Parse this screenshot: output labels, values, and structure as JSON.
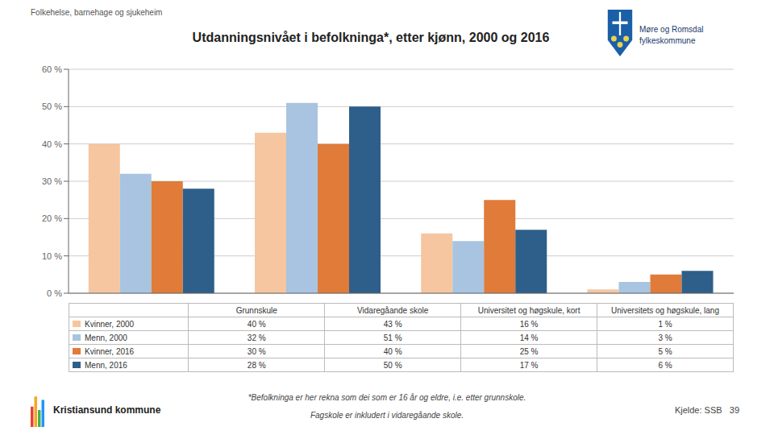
{
  "chart_data": {
    "type": "bar",
    "title": "Utdanningsnivået i befolkninga*, etter kjønn, 2000 og 2016",
    "categories": [
      "Grunnskule",
      "Vidaregåande skole",
      "Universitet og høgskule, kort",
      "Universitets og høgskule, lang"
    ],
    "series": [
      {
        "name": "Kvinner, 2000",
        "color": "#f5c6a0",
        "values": [
          40,
          43,
          16,
          1
        ],
        "value_labels": [
          "40 %",
          "43 %",
          "16 %",
          "1 %"
        ]
      },
      {
        "name": "Menn, 2000",
        "color": "#a8c4e0",
        "values": [
          32,
          51,
          14,
          3
        ],
        "value_labels": [
          "32 %",
          "51 %",
          "14 %",
          "3 %"
        ]
      },
      {
        "name": "Kvinner, 2016",
        "color": "#e07b39",
        "values": [
          30,
          40,
          25,
          5
        ],
        "value_labels": [
          "30 %",
          "40 %",
          "25 %",
          "5 %"
        ]
      },
      {
        "name": "Menn, 2016",
        "color": "#2e5f8a",
        "values": [
          28,
          50,
          17,
          6
        ],
        "value_labels": [
          "28 %",
          "50 %",
          "17 %",
          "6 %"
        ]
      }
    ],
    "ylim": [
      0,
      60
    ],
    "yticks": [
      {
        "value": 0,
        "label": "0 %"
      },
      {
        "value": 10,
        "label": "10 %"
      },
      {
        "value": 20,
        "label": "20 %"
      },
      {
        "value": 30,
        "label": "30 %"
      },
      {
        "value": 40,
        "label": "40 %"
      },
      {
        "value": 50,
        "label": "50 %"
      },
      {
        "value": 60,
        "label": "60 %"
      }
    ],
    "grid": true,
    "tick_labels": "y",
    "annotations": [
      "Folkehelse, barnehage og sjukeheim",
      "Møre og Romsdal\nfylkeskommune",
      "*Befolkninga er her rekna som dei som er 16 år og eldre, i.e. etter grunnskole.",
      "Fagskole er inkludert i vidaregåande skole.",
      "Kristiansund kommune",
      "Kjelde: SSB   39"
    ]
  }
}
